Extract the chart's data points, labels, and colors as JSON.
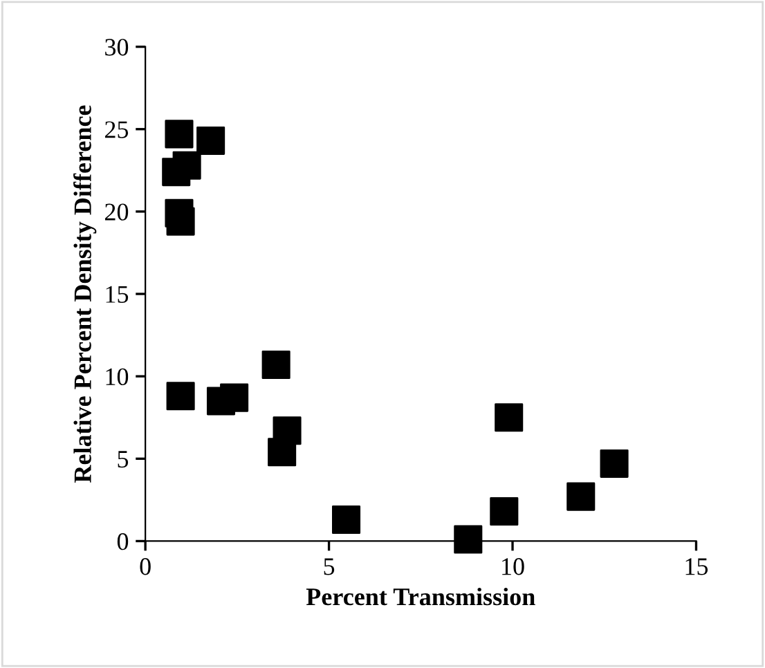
{
  "chart_data": {
    "type": "scatter",
    "xlabel": "Percent Transmission",
    "ylabel": "Relative Percent Density Difference",
    "x": [
      0.92,
      1.78,
      1.13,
      0.84,
      0.92,
      0.96,
      0.96,
      2.06,
      2.42,
      3.56,
      3.86,
      3.72,
      5.47,
      8.79,
      9.9,
      9.77,
      11.86,
      12.77
    ],
    "values": [
      24.7,
      24.3,
      22.8,
      22.4,
      19.9,
      19.4,
      8.8,
      8.5,
      8.7,
      10.7,
      6.7,
      5.4,
      1.3,
      0.1,
      7.5,
      1.8,
      2.7,
      4.7
    ],
    "color": "#000000",
    "marker": "square",
    "xlim": [
      0,
      15
    ],
    "xticks": [
      0,
      5,
      10,
      15
    ],
    "ylim": [
      0,
      30
    ],
    "yticks": [
      0,
      5,
      10,
      15,
      20,
      25,
      30
    ],
    "grid": false,
    "legend": false
  }
}
